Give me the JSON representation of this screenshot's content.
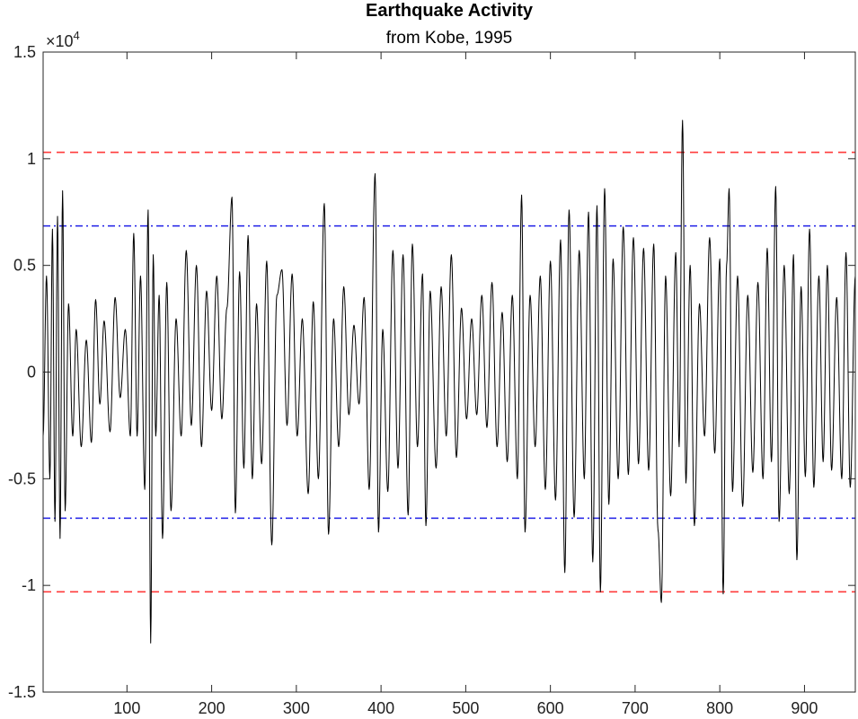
{
  "chart_data": {
    "type": "line",
    "title": "Earthquake Activity",
    "subtitle": "from Kobe, 1995",
    "xlabel": "",
    "ylabel": "",
    "xlim": [
      1,
      960
    ],
    "ylim": [
      -15000,
      15000
    ],
    "x_ticks": [
      100,
      200,
      300,
      400,
      500,
      600,
      700,
      800,
      900
    ],
    "y_ticks": [
      -15000,
      -10000,
      -5000,
      0,
      5000,
      10000,
      15000
    ],
    "y_tick_labels": [
      "-1.5",
      "-1",
      "-0.5",
      "0",
      "0.5",
      "1",
      "1.5"
    ],
    "y_exponent_label": "×10",
    "y_exponent_power": "4",
    "grid": false,
    "colors": {
      "signal": "#000000",
      "outer_threshold": "#ff3b3b",
      "inner_threshold": "#2f2fe8",
      "axes": "#262626"
    },
    "thresholds": [
      {
        "y": 10300,
        "color": "#ff3b3b",
        "style": "dashed"
      },
      {
        "y": -10300,
        "color": "#ff3b3b",
        "style": "dashed"
      },
      {
        "y": 6850,
        "color": "#2f2fe8",
        "style": "dashdot"
      },
      {
        "y": -6850,
        "color": "#2f2fe8",
        "style": "dashdot"
      }
    ],
    "signal_peaks": [
      [
        1,
        -3000
      ],
      [
        5,
        4500
      ],
      [
        9,
        -5000
      ],
      [
        12,
        6700
      ],
      [
        15,
        -7000
      ],
      [
        18,
        7300
      ],
      [
        21,
        -7800
      ],
      [
        24,
        8500
      ],
      [
        27,
        -6500
      ],
      [
        31,
        3200
      ],
      [
        36,
        -3000
      ],
      [
        40,
        2000
      ],
      [
        46,
        -3500
      ],
      [
        52,
        1500
      ],
      [
        58,
        -3300
      ],
      [
        63,
        3400
      ],
      [
        68,
        -1500
      ],
      [
        73,
        2400
      ],
      [
        80,
        -2800
      ],
      [
        86,
        3500
      ],
      [
        92,
        -1200
      ],
      [
        98,
        2000
      ],
      [
        104,
        -3000
      ],
      [
        108,
        6500
      ],
      [
        112,
        -3000
      ],
      [
        116,
        4500
      ],
      [
        121,
        -5500
      ],
      [
        125,
        7600
      ],
      [
        128,
        -12700
      ],
      [
        131,
        5500
      ],
      [
        134,
        -3000
      ],
      [
        138,
        3600
      ],
      [
        142,
        -7800
      ],
      [
        147,
        4200
      ],
      [
        152,
        -6500
      ],
      [
        158,
        2500
      ],
      [
        164,
        -3000
      ],
      [
        170,
        5700
      ],
      [
        176,
        -2500
      ],
      [
        182,
        5000
      ],
      [
        188,
        -3500
      ],
      [
        194,
        3800
      ],
      [
        200,
        -1800
      ],
      [
        206,
        4500
      ],
      [
        212,
        -2200
      ],
      [
        218,
        3000
      ],
      [
        224,
        8200
      ],
      [
        228,
        -6600
      ],
      [
        233,
        4700
      ],
      [
        238,
        -4500
      ],
      [
        243,
        6400
      ],
      [
        248,
        -5000
      ],
      [
        253,
        3200
      ],
      [
        259,
        -4300
      ],
      [
        265,
        5200
      ],
      [
        271,
        -8100
      ],
      [
        277,
        3600
      ],
      [
        283,
        4800
      ],
      [
        289,
        -2500
      ],
      [
        295,
        4600
      ],
      [
        301,
        -3000
      ],
      [
        307,
        2500
      ],
      [
        314,
        -5700
      ],
      [
        320,
        3300
      ],
      [
        326,
        -5000
      ],
      [
        333,
        7900
      ],
      [
        338,
        -7600
      ],
      [
        344,
        2500
      ],
      [
        350,
        -3500
      ],
      [
        356,
        4000
      ],
      [
        362,
        -2000
      ],
      [
        368,
        2200
      ],
      [
        374,
        -1500
      ],
      [
        380,
        3500
      ],
      [
        386,
        -5500
      ],
      [
        393,
        9300
      ],
      [
        397,
        -7500
      ],
      [
        402,
        2000
      ],
      [
        408,
        -5600
      ],
      [
        414,
        5700
      ],
      [
        420,
        -4500
      ],
      [
        426,
        5500
      ],
      [
        432,
        -6700
      ],
      [
        437,
        6000
      ],
      [
        443,
        -3500
      ],
      [
        449,
        4600
      ],
      [
        453,
        -7200
      ],
      [
        458,
        3800
      ],
      [
        465,
        -4500
      ],
      [
        471,
        4000
      ],
      [
        477,
        -3000
      ],
      [
        483,
        5500
      ],
      [
        489,
        -4000
      ],
      [
        495,
        3000
      ],
      [
        501,
        -2200
      ],
      [
        507,
        2500
      ],
      [
        513,
        -2000
      ],
      [
        519,
        3600
      ],
      [
        525,
        -2600
      ],
      [
        531,
        4200
      ],
      [
        537,
        -3500
      ],
      [
        543,
        2800
      ],
      [
        549,
        -4200
      ],
      [
        555,
        3600
      ],
      [
        561,
        -5000
      ],
      [
        566,
        8300
      ],
      [
        570,
        -7500
      ],
      [
        576,
        3600
      ],
      [
        582,
        -3500
      ],
      [
        588,
        4500
      ],
      [
        594,
        -5500
      ],
      [
        600,
        5200
      ],
      [
        606,
        -6000
      ],
      [
        612,
        6200
      ],
      [
        617,
        -9400
      ],
      [
        622,
        7600
      ],
      [
        628,
        -6800
      ],
      [
        634,
        5700
      ],
      [
        640,
        -5000
      ],
      [
        645,
        7500
      ],
      [
        650,
        -8900
      ],
      [
        655,
        7800
      ],
      [
        659,
        -10300
      ],
      [
        664,
        8600
      ],
      [
        669,
        -6200
      ],
      [
        674,
        5300
      ],
      [
        680,
        -5000
      ],
      [
        686,
        6800
      ],
      [
        692,
        -4800
      ],
      [
        698,
        6300
      ],
      [
        704,
        -4300
      ],
      [
        710,
        5800
      ],
      [
        716,
        -4600
      ],
      [
        722,
        6000
      ],
      [
        727,
        -7400
      ],
      [
        731,
        -10800
      ],
      [
        736,
        4500
      ],
      [
        742,
        -5800
      ],
      [
        748,
        5600
      ],
      [
        752,
        -3500
      ],
      [
        756,
        11800
      ],
      [
        760,
        -5200
      ],
      [
        765,
        5000
      ],
      [
        770,
        -7200
      ],
      [
        776,
        3200
      ],
      [
        782,
        -3000
      ],
      [
        788,
        6300
      ],
      [
        794,
        -3800
      ],
      [
        800,
        5300
      ],
      [
        804,
        -10400
      ],
      [
        808,
        5000
      ],
      [
        811,
        8600
      ],
      [
        815,
        -5600
      ],
      [
        821,
        4500
      ],
      [
        827,
        -6300
      ],
      [
        833,
        3600
      ],
      [
        839,
        -4700
      ],
      [
        845,
        4200
      ],
      [
        851,
        -5000
      ],
      [
        856,
        5800
      ],
      [
        861,
        -4200
      ],
      [
        866,
        8700
      ],
      [
        870,
        -7000
      ],
      [
        876,
        5000
      ],
      [
        882,
        -5700
      ],
      [
        887,
        5500
      ],
      [
        891,
        -8800
      ],
      [
        896,
        4000
      ],
      [
        901,
        -4900
      ],
      [
        906,
        6700
      ],
      [
        911,
        -5400
      ],
      [
        917,
        4500
      ],
      [
        922,
        -4200
      ],
      [
        927,
        5000
      ],
      [
        932,
        -4600
      ],
      [
        938,
        3500
      ],
      [
        944,
        -5000
      ],
      [
        949,
        5600
      ],
      [
        954,
        -5400
      ],
      [
        960,
        4500
      ]
    ]
  }
}
